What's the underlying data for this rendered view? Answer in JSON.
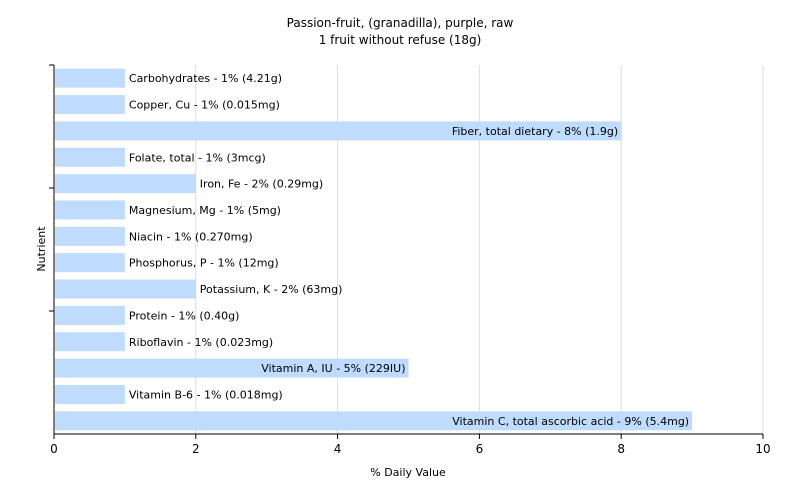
{
  "chart_data": {
    "type": "bar",
    "orientation": "horizontal",
    "title": "Passion-fruit, (granadilla), purple, raw",
    "subtitle": "1 fruit without refuse (18g)",
    "xlabel": "% Daily Value",
    "ylabel": "Nutrient",
    "xlim": [
      0,
      10
    ],
    "x_ticks": [
      0,
      2,
      4,
      6,
      8,
      10
    ],
    "grid": true,
    "bar_color": "#bfdcff",
    "categories": [
      "Carbohydrates",
      "Copper, Cu",
      "Fiber, total dietary",
      "Folate, total",
      "Iron, Fe",
      "Magnesium, Mg",
      "Niacin",
      "Phosphorus, P",
      "Potassium, K",
      "Protein",
      "Riboflavin",
      "Vitamin A, IU",
      "Vitamin B-6",
      "Vitamin C, total ascorbic acid"
    ],
    "values": [
      1,
      1,
      8,
      1,
      2,
      1,
      1,
      1,
      2,
      1,
      1,
      5,
      1,
      9
    ],
    "labels": [
      "Carbohydrates - 1% (4.21g)",
      "Copper, Cu - 1% (0.015mg)",
      "Fiber, total dietary - 8% (1.9g)",
      "Folate, total - 1% (3mcg)",
      "Iron, Fe - 2% (0.29mg)",
      "Magnesium, Mg - 1% (5mg)",
      "Niacin - 1% (0.270mg)",
      "Phosphorus, P - 1% (12mg)",
      "Potassium, K - 2% (63mg)",
      "Protein - 1% (0.40g)",
      "Riboflavin - 1% (0.023mg)",
      "Vitamin A, IU - 5% (229IU)",
      "Vitamin B-6 - 1% (0.018mg)",
      "Vitamin C, total ascorbic acid - 9% (5.4mg)"
    ]
  }
}
